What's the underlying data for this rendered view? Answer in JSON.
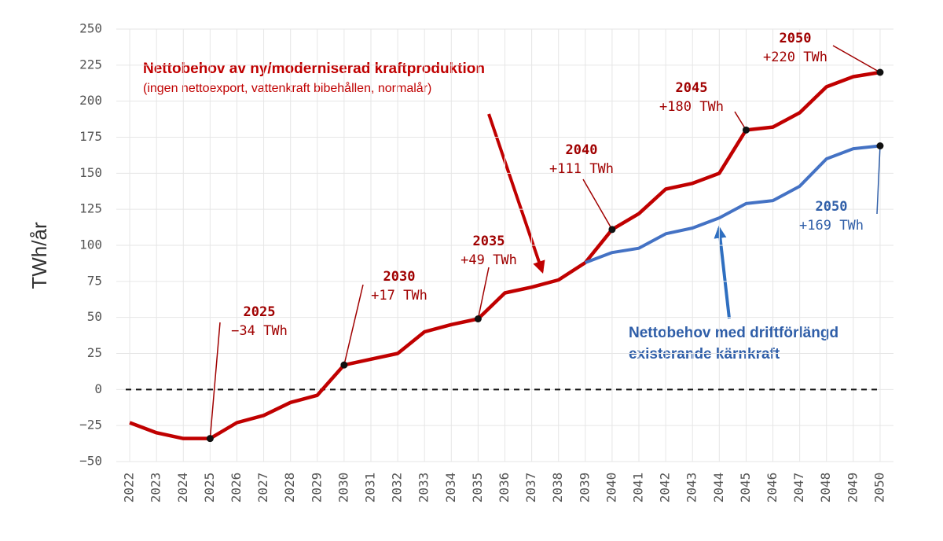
{
  "chart_data": {
    "type": "line",
    "y_label": "TWh/år",
    "subtitle": "(ingen nettoexport, vattenkraft bibehållen, normalår)",
    "x": [
      2022,
      2023,
      2024,
      2025,
      2026,
      2027,
      2028,
      2029,
      2030,
      2031,
      2032,
      2033,
      2034,
      2035,
      2036,
      2037,
      2038,
      2039,
      2040,
      2041,
      2042,
      2043,
      2044,
      2045,
      2046,
      2047,
      2048,
      2049,
      2050
    ],
    "xlim": [
      2021.5,
      2050.5
    ],
    "xticks": [
      2022,
      2023,
      2024,
      2025,
      2026,
      2027,
      2028,
      2029,
      2030,
      2031,
      2032,
      2033,
      2034,
      2035,
      2036,
      2037,
      2038,
      2039,
      2040,
      2041,
      2042,
      2043,
      2044,
      2045,
      2046,
      2047,
      2048,
      2049,
      2050
    ],
    "ylim": [
      -50,
      250
    ],
    "yticks": [
      {
        "value": -50,
        "label": "−50"
      },
      {
        "value": -25,
        "label": "−25"
      },
      0,
      25,
      50,
      75,
      100,
      125,
      150,
      175,
      200,
      225,
      250
    ],
    "grid": true,
    "series": [
      {
        "name": "Nettobehov av ny/moderniserad kraftproduktion",
        "color": "#c00000",
        "values": [
          -23,
          -30,
          -34,
          -34,
          -23,
          -18,
          -9,
          -4,
          17,
          21,
          25,
          40,
          45,
          49,
          67,
          71,
          76,
          88,
          111,
          122,
          139,
          143,
          150,
          180,
          182,
          192,
          210,
          217,
          220
        ],
        "value_labels": [
          null,
          null,
          null,
          "−34 TWh",
          null,
          null,
          null,
          null,
          "+17 TWh",
          null,
          null,
          null,
          null,
          "+49 TWh",
          null,
          null,
          null,
          null,
          "+111 TWh",
          null,
          null,
          null,
          null,
          "+180 TWh",
          null,
          null,
          null,
          null,
          "+220 TWh"
        ]
      },
      {
        "name": "Nettobehov med driftförlängd existerande kärnkraft",
        "color": "#4472c4",
        "values": [
          null,
          null,
          null,
          null,
          null,
          null,
          null,
          null,
          null,
          null,
          null,
          null,
          null,
          null,
          null,
          null,
          null,
          88,
          95,
          98,
          108,
          112,
          119,
          129,
          131,
          141,
          160,
          167,
          169
        ],
        "value_labels": [
          null,
          null,
          null,
          null,
          null,
          null,
          null,
          null,
          null,
          null,
          null,
          null,
          null,
          null,
          null,
          null,
          null,
          null,
          null,
          null,
          null,
          null,
          null,
          null,
          null,
          null,
          null,
          null,
          "+169 TWh"
        ]
      }
    ]
  }
}
